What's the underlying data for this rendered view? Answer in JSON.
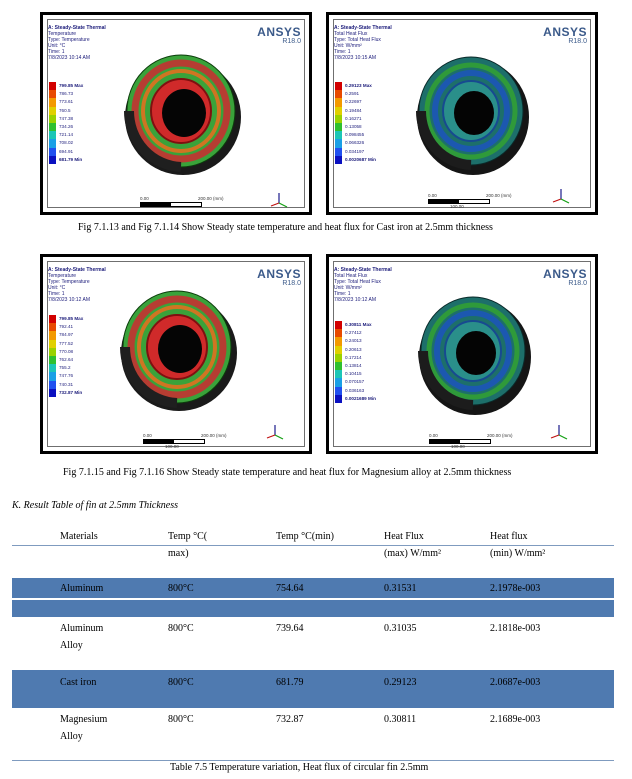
{
  "panels": [
    {
      "id": "cast-iron-temperature",
      "info_lines": [
        "A: Steady-State Thermal",
        "Temperature",
        "Type: Temperature",
        "Unit: °C",
        "Time: 1",
        "7/8/2023 10:14 AM"
      ],
      "brand": "ANSYS",
      "version": "R18.0",
      "legend": [
        "799.85 Max",
        "786.73",
        "773.61",
        "760.5",
        "747.38",
        "734.26",
        "721.14",
        "708.02",
        "694.91",
        "681.79 Min"
      ],
      "scale": {
        "start": "0.00",
        "end": "200.00 (mm)",
        "mid": "100.00"
      }
    },
    {
      "id": "cast-iron-heat-flux",
      "info_lines": [
        "A: Steady-State Thermal",
        "Total Heat Flux",
        "Type: Total Heat Flux",
        "Unit: W/mm²",
        "Time: 1",
        "7/8/2023 10:15 AM"
      ],
      "brand": "ANSYS",
      "version": "R18.0",
      "legend": [
        "0.29123 Max",
        "0.2591",
        "0.22697",
        "0.19484",
        "0.16271",
        "0.13058",
        "0.098455",
        "0.066326",
        "0.034197",
        "0.0020687 Min"
      ],
      "scale": {
        "start": "0.00",
        "end": "200.00 (mm)",
        "mid": "100.00"
      }
    },
    {
      "id": "magnesium-temperature",
      "info_lines": [
        "A: Steady-State Thermal",
        "Temperature",
        "Type: Temperature",
        "Unit: °C",
        "Time: 1",
        "7/8/2023 10:12 AM"
      ],
      "brand": "ANSYS",
      "version": "R18.0",
      "legend": [
        "799.85 Max",
        "792.41",
        "784.97",
        "777.52",
        "770.08",
        "762.64",
        "755.2",
        "747.76",
        "740.31",
        "732.87 Min"
      ],
      "scale": {
        "start": "0.00",
        "end": "200.00 (mm)",
        "mid": "100.00"
      }
    },
    {
      "id": "magnesium-heat-flux",
      "info_lines": [
        "A: Steady-State Thermal",
        "Total Heat Flux",
        "Type: Total Heat Flux",
        "Unit: W/mm²",
        "Time: 1",
        "7/8/2023 10:12 AM"
      ],
      "brand": "ANSYS",
      "version": "R18.0",
      "legend": [
        "0.30811 Max",
        "0.27412",
        "0.24013",
        "0.20613",
        "0.17214",
        "0.13814",
        "0.10415",
        "0.070157",
        "0.036163",
        "0.0021689 Min"
      ],
      "scale": {
        "start": "0.00",
        "end": "200.00 (mm)",
        "mid": "100.00"
      }
    }
  ],
  "captions": {
    "fig_cast_iron": "Fig 7.1.13 and Fig 7.1.14 Show Steady state temperature and heat flux for Cast iron at  2.5mm thickness",
    "fig_magnesium": "Fig 7.1.15 and Fig 7.1.16 Show Steady state temperature and heat flux for Magnesium alloy at 2.5mm thickness",
    "table": "Table 7.5 Temperature variation, Heat flux of circular fin 2.5mm"
  },
  "section_title": "K.   Result Table of fin at 2.5mm Thickness",
  "table": {
    "headers": [
      [
        "Materials",
        ""
      ],
      [
        "Temp °C(",
        "max)"
      ],
      [
        "Temp °C(min)",
        ""
      ],
      [
        "Heat Flux",
        "(max) W/mm²"
      ],
      [
        "Heat flux",
        "(min) W/mm²"
      ]
    ],
    "rows": [
      {
        "material": [
          "Aluminum",
          ""
        ],
        "tmax": "800°C",
        "tmin": "754.64",
        "qmax": "0.31531",
        "qmin": "2.1978e-003"
      },
      {
        "material": [
          "Aluminum",
          "Alloy"
        ],
        "tmax": "800°C",
        "tmin": "739.64",
        "qmax": "0.31035",
        "qmin": "2.1818e-003"
      },
      {
        "material": [
          "Cast iron",
          ""
        ],
        "tmax": "800°C",
        "tmin": "681.79",
        "qmax": "0.29123",
        "qmin": "2.0687e-003"
      },
      {
        "material": [
          "Magnesium",
          "Alloy"
        ],
        "tmax": "800°C",
        "tmin": "732.87",
        "qmax": "0.30811",
        "qmin": "2.1689e-003"
      }
    ]
  },
  "colors": {
    "temp_scale": [
      "#d20000",
      "#e84a00",
      "#f39a00",
      "#e0d000",
      "#9ad200",
      "#2fc02f",
      "#1cc6b6",
      "#1aa0e6",
      "#2050f0",
      "#0a10c0"
    ],
    "flux_scale": [
      "#d20000",
      "#e84a00",
      "#f39a00",
      "#e0d000",
      "#9ad200",
      "#2fc02f",
      "#1cc6b6",
      "#1aa0e6",
      "#2050f0",
      "#0a10c0"
    ],
    "table_shade": "#4f7ab0"
  }
}
